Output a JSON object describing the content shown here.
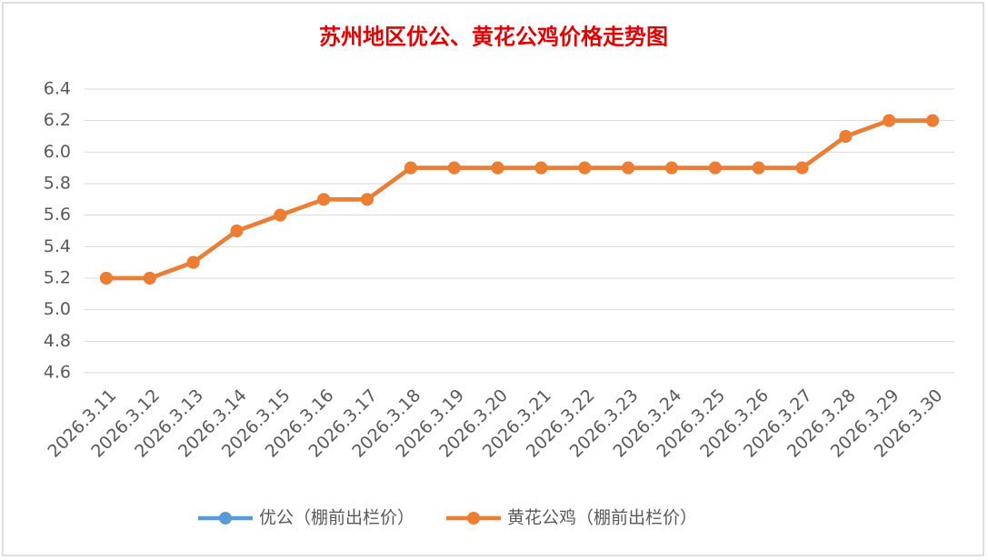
{
  "chart_data": {
    "type": "line",
    "title": "苏州地区优公、黄花公鸡价格走势图",
    "categories": [
      "2026.3.11",
      "2026.3.12",
      "2026.3.13",
      "2026.3.14",
      "2026.3.15",
      "2026.3.16",
      "2026.3.17",
      "2026.3.18",
      "2026.3.19",
      "2026.3.20",
      "2026.3.21",
      "2026.3.22",
      "2026.3.23",
      "2026.3.24",
      "2026.3.25",
      "2026.3.26",
      "2026.3.27",
      "2026.3.28",
      "2026.3.29",
      "2026.3.30"
    ],
    "series": [
      {
        "name": "优公（棚前出栏价）",
        "color": "#5b9bd5",
        "values": [
          5.2,
          5.2,
          5.3,
          5.5,
          5.6,
          5.7,
          5.7,
          5.9,
          5.9,
          5.9,
          5.9,
          5.9,
          5.9,
          5.9,
          5.9,
          5.9,
          5.9,
          6.1,
          6.2,
          6.2
        ]
      },
      {
        "name": "黄花公鸡（棚前出栏价）",
        "color": "#ed7d31",
        "values": [
          5.2,
          5.2,
          5.3,
          5.5,
          5.6,
          5.7,
          5.7,
          5.9,
          5.9,
          5.9,
          5.9,
          5.9,
          5.9,
          5.9,
          5.9,
          5.9,
          5.9,
          6.1,
          6.2,
          6.2
        ]
      }
    ],
    "ylim": [
      4.6,
      6.4
    ],
    "yticks": [
      4.6,
      4.8,
      {
        "value": 5,
        "label": "5.0"
      },
      5.2,
      5.4,
      5.6,
      5.8,
      {
        "value": 6,
        "label": "6.0"
      },
      6.2,
      6.4
    ],
    "grid": true,
    "legend": "bottom"
  }
}
